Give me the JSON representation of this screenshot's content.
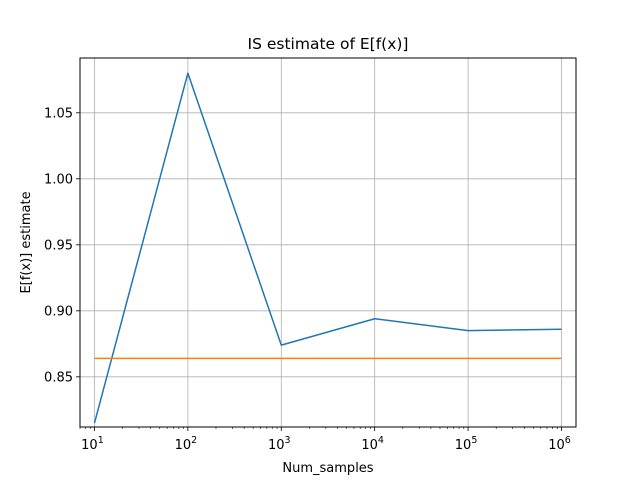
{
  "chart_data": {
    "type": "line",
    "title": "IS estimate of E[f(x)]",
    "xlabel": "Num_samples",
    "ylabel": "E[f(x)] estimate",
    "xscale": "log",
    "grid": true,
    "x": [
      10,
      100,
      1000,
      10000,
      100000,
      1000000
    ],
    "xlim": [
      7.0,
      1430000
    ],
    "ylim": [
      0.812,
      1.0915
    ],
    "xticks": [
      {
        "value": 10,
        "base": "10",
        "exp": "1"
      },
      {
        "value": 100,
        "base": "10",
        "exp": "2"
      },
      {
        "value": 1000,
        "base": "10",
        "exp": "3"
      },
      {
        "value": 10000,
        "base": "10",
        "exp": "4"
      },
      {
        "value": 100000,
        "base": "10",
        "exp": "5"
      },
      {
        "value": 1000000,
        "base": "10",
        "exp": "6"
      }
    ],
    "yticks": [
      {
        "value": 0.85,
        "label": "0.85"
      },
      {
        "value": 0.9,
        "label": "0.90"
      },
      {
        "value": 0.95,
        "label": "0.95"
      },
      {
        "value": 1.0,
        "label": "1.00"
      },
      {
        "value": 1.05,
        "label": "1.05"
      }
    ],
    "series": [
      {
        "color": "#1f77b4",
        "values": [
          0.815,
          1.08,
          0.874,
          0.894,
          0.885,
          0.886
        ]
      },
      {
        "color": "#ff7f0e",
        "values": [
          0.864,
          0.864,
          0.864,
          0.864,
          0.864,
          0.864
        ]
      }
    ]
  }
}
